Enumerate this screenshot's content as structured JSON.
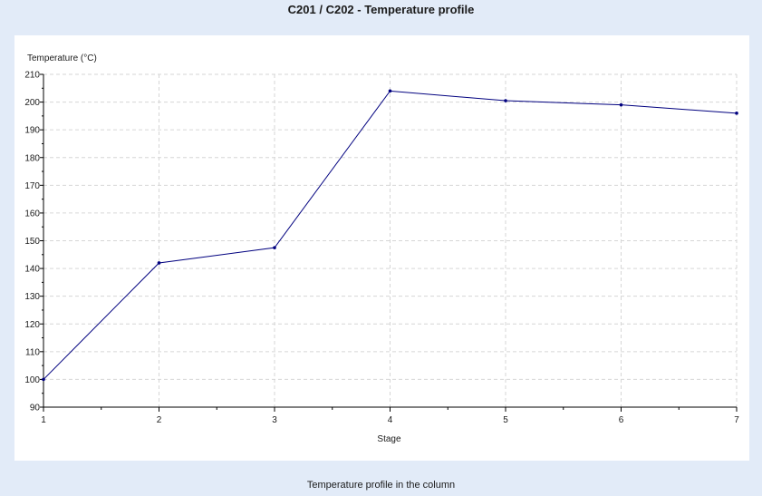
{
  "title": "C201 / C202 - Temperature profile",
  "caption": "Temperature profile in the column",
  "colors": {
    "background": "#e2ebf8",
    "panel": "#ffffff",
    "line": "#00007f",
    "grid": "#d6d6d6",
    "axis": "#000000"
  },
  "chart_data": {
    "type": "line",
    "title": "C201 / C202 - Temperature profile",
    "xlabel": "Stage",
    "ylabel": "Temperature (°C)",
    "x": [
      1,
      2,
      3,
      4,
      5,
      6,
      7
    ],
    "series": [
      {
        "values": [
          100,
          142,
          147.5,
          204,
          200.5,
          199,
          196
        ]
      }
    ],
    "xlim": [
      1,
      7
    ],
    "ylim": [
      90,
      210
    ],
    "xticks": [
      1,
      2,
      3,
      4,
      5,
      6,
      7
    ],
    "yticks": [
      90,
      100,
      110,
      120,
      130,
      140,
      150,
      160,
      170,
      180,
      190,
      200,
      210
    ],
    "grid": true,
    "legend": "none"
  }
}
